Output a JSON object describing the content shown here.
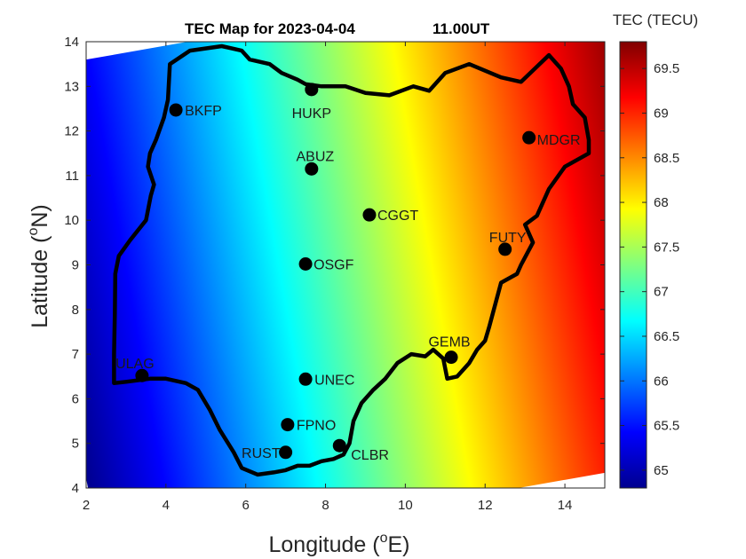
{
  "chart_data": {
    "type": "heatmap",
    "title_date": "TEC Map for 2023-04-04",
    "title_time": "11.00UT",
    "xlabel_text": "Longitude (",
    "xlabel_sup": "o",
    "xlabel_end": "E)",
    "ylabel_text": "Latitude (",
    "ylabel_sup": "o",
    "ylabel_end": "N)",
    "xlim": [
      2,
      15
    ],
    "ylim": [
      4,
      14
    ],
    "xticks": [
      "2",
      "4",
      "6",
      "8",
      "10",
      "12",
      "14"
    ],
    "yticks": [
      "4",
      "5",
      "6",
      "7",
      "8",
      "9",
      "10",
      "11",
      "12",
      "13",
      "14"
    ],
    "colorbar": {
      "label": "TEC (TECU)",
      "range": [
        64.8,
        69.8
      ],
      "ticks": [
        "65",
        "65.5",
        "66",
        "66.5",
        "67",
        "67.5",
        "68",
        "68.5",
        "69",
        "69.5"
      ],
      "colormap": "jet"
    },
    "field": {
      "description_of_gradient": "TEC increases west to east",
      "min_at": [
        2,
        4
      ],
      "max_at": [
        15,
        14
      ]
    },
    "stations": [
      {
        "name": "BKFP",
        "lon": 4.25,
        "lat": 12.47
      },
      {
        "name": "HUKP",
        "lon": 7.65,
        "lat": 12.93
      },
      {
        "name": "ABUZ",
        "lon": 7.65,
        "lat": 11.15
      },
      {
        "name": "MDGR",
        "lon": 13.1,
        "lat": 11.85
      },
      {
        "name": "CGGT",
        "lon": 9.1,
        "lat": 10.12
      },
      {
        "name": "FUTY",
        "lon": 12.5,
        "lat": 9.35
      },
      {
        "name": "OSGF",
        "lon": 7.5,
        "lat": 9.02
      },
      {
        "name": "GEMB",
        "lon": 11.15,
        "lat": 6.93
      },
      {
        "name": "ULAG",
        "lon": 3.4,
        "lat": 6.52
      },
      {
        "name": "UNEC",
        "lon": 7.5,
        "lat": 6.44
      },
      {
        "name": "FPNO",
        "lon": 7.05,
        "lat": 5.42
      },
      {
        "name": "RUST",
        "lon": 7.0,
        "lat": 4.8
      },
      {
        "name": "CLBR",
        "lon": 8.35,
        "lat": 4.95
      }
    ],
    "boundary": [
      [
        2.7,
        6.35
      ],
      [
        2.7,
        7.0
      ],
      [
        2.72,
        7.9
      ],
      [
        2.73,
        8.8
      ],
      [
        2.82,
        9.2
      ],
      [
        3.1,
        9.55
      ],
      [
        3.5,
        10.0
      ],
      [
        3.62,
        10.55
      ],
      [
        3.7,
        10.8
      ],
      [
        3.55,
        11.2
      ],
      [
        3.6,
        11.5
      ],
      [
        3.75,
        11.8
      ],
      [
        3.95,
        12.3
      ],
      [
        4.05,
        12.7
      ],
      [
        4.1,
        13.5
      ],
      [
        4.6,
        13.8
      ],
      [
        5.4,
        13.9
      ],
      [
        5.9,
        13.8
      ],
      [
        6.1,
        13.6
      ],
      [
        6.6,
        13.5
      ],
      [
        6.9,
        13.3
      ],
      [
        7.3,
        13.15
      ],
      [
        7.5,
        13.05
      ],
      [
        7.9,
        13.0
      ],
      [
        8.5,
        13.0
      ],
      [
        9.0,
        12.85
      ],
      [
        9.6,
        12.8
      ],
      [
        10.2,
        13.0
      ],
      [
        10.6,
        12.9
      ],
      [
        11.0,
        13.3
      ],
      [
        11.6,
        13.5
      ],
      [
        12.4,
        13.2
      ],
      [
        12.9,
        13.1
      ],
      [
        13.6,
        13.7
      ],
      [
        13.9,
        13.4
      ],
      [
        14.1,
        13.0
      ],
      [
        14.2,
        12.6
      ],
      [
        14.5,
        12.3
      ],
      [
        14.6,
        11.8
      ],
      [
        14.6,
        11.5
      ],
      [
        14.0,
        11.2
      ],
      [
        13.6,
        10.7
      ],
      [
        13.3,
        10.1
      ],
      [
        13.0,
        9.9
      ],
      [
        13.2,
        9.5
      ],
      [
        12.9,
        9.0
      ],
      [
        12.8,
        8.8
      ],
      [
        12.4,
        8.6
      ],
      [
        12.1,
        7.6
      ],
      [
        12.0,
        7.3
      ],
      [
        11.8,
        7.1
      ],
      [
        11.6,
        6.8
      ],
      [
        11.3,
        6.5
      ],
      [
        11.05,
        6.45
      ],
      [
        10.95,
        6.9
      ],
      [
        10.7,
        7.1
      ],
      [
        10.5,
        6.95
      ],
      [
        10.15,
        7.0
      ],
      [
        9.8,
        6.8
      ],
      [
        9.5,
        6.45
      ],
      [
        9.2,
        6.2
      ],
      [
        8.9,
        5.9
      ],
      [
        8.7,
        5.5
      ],
      [
        8.6,
        5.0
      ],
      [
        8.45,
        4.75
      ],
      [
        8.2,
        4.65
      ],
      [
        7.9,
        4.6
      ],
      [
        7.6,
        4.5
      ],
      [
        7.3,
        4.5
      ],
      [
        7.0,
        4.4
      ],
      [
        6.7,
        4.35
      ],
      [
        6.3,
        4.3
      ],
      [
        5.9,
        4.45
      ],
      [
        5.7,
        4.8
      ],
      [
        5.35,
        5.3
      ],
      [
        5.1,
        5.75
      ],
      [
        4.8,
        6.2
      ],
      [
        4.5,
        6.35
      ],
      [
        4.0,
        6.45
      ],
      [
        3.6,
        6.45
      ],
      [
        3.0,
        6.38
      ],
      [
        2.7,
        6.35
      ]
    ]
  }
}
